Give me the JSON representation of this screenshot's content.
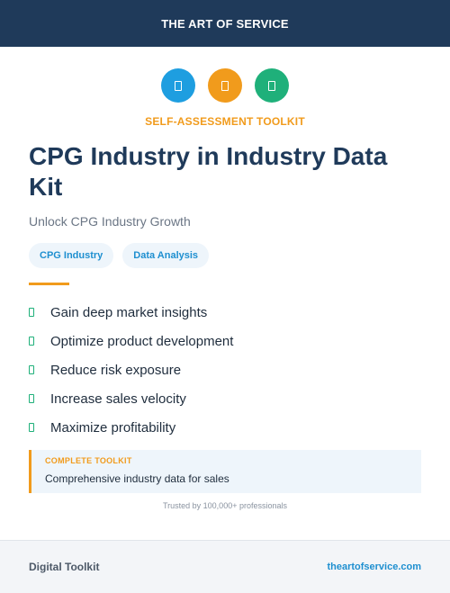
{
  "header": {
    "brand": "THE ART OF SERVICE"
  },
  "icons": [
    {
      "name": "document-icon",
      "color": "#1e9ee0"
    },
    {
      "name": "document-icon",
      "color": "#f19b1c"
    },
    {
      "name": "document-icon",
      "color": "#1fb07a"
    }
  ],
  "kicker": "SELF-ASSESSMENT TOOLKIT",
  "title": "CPG Industry in Industry Data Kit",
  "subtitle": "Unlock CPG Industry Growth",
  "tags": [
    "CPG Industry",
    "Data Analysis"
  ],
  "features": [
    "Gain deep market insights",
    "Optimize product development",
    "Reduce risk exposure",
    "Increase sales velocity",
    "Maximize profitability"
  ],
  "callout": {
    "label": "COMPLETE TOOLKIT",
    "text": "Comprehensive industry data for sales"
  },
  "trusted": "Trusted by 100,000+ professionals",
  "footer": {
    "left": "Digital Toolkit",
    "right": "theartofservice.com"
  },
  "colors": {
    "navy": "#1f3a5a",
    "orange": "#f19b1c",
    "blue": "#1e9ee0",
    "green": "#1fb07a"
  }
}
